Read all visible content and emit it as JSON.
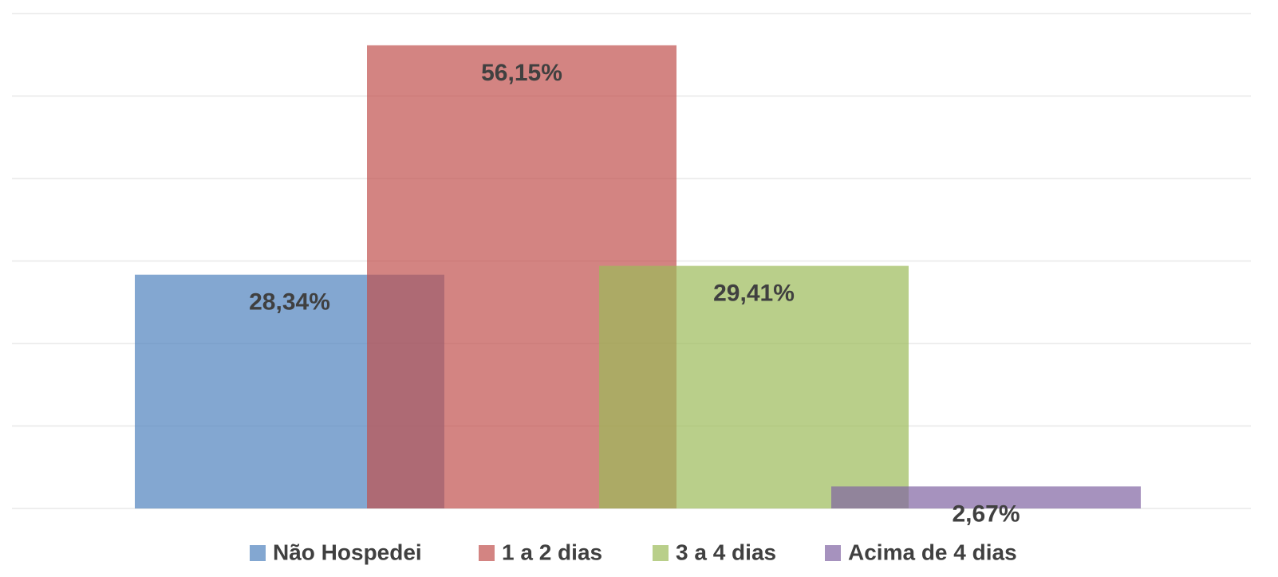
{
  "chart_data": {
    "type": "bar",
    "categories": [
      null
    ],
    "series": [
      {
        "name": "Não Hospedei",
        "color": "#4f81bd",
        "values": [
          28.34
        ],
        "value_labels": [
          "28,34%"
        ]
      },
      {
        "name": "1 a 2 dias",
        "color": "#c0504d",
        "values": [
          56.15
        ],
        "value_labels": [
          "56,15%"
        ]
      },
      {
        "name": "3 a 4 dias",
        "color": "#9bbb59",
        "values": [
          29.41
        ],
        "value_labels": [
          "29,41%"
        ]
      },
      {
        "name": "Acima de 4 dias",
        "color": "#8064a2",
        "values": [
          2.67
        ],
        "value_labels": [
          "2,67%"
        ]
      }
    ],
    "ylim": [
      0,
      60
    ],
    "yticks": [
      0,
      10,
      20,
      30,
      40,
      50,
      60
    ],
    "grid": true,
    "legend": "bottom"
  }
}
